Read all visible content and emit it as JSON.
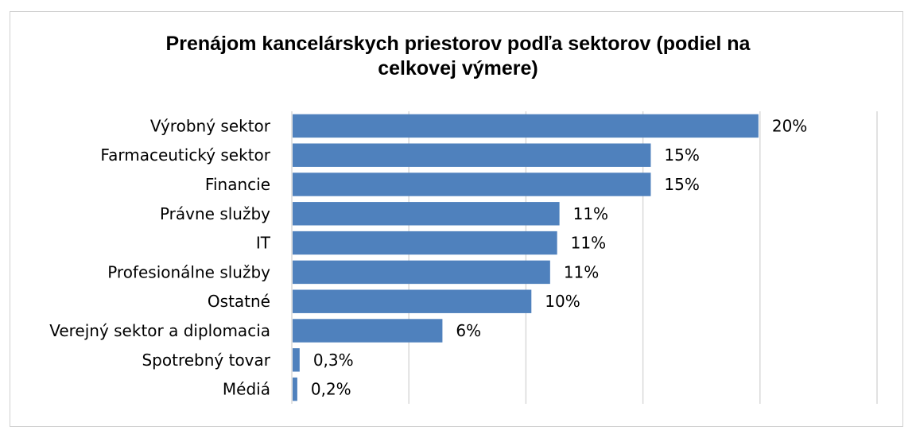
{
  "chart_data": {
    "type": "bar",
    "orientation": "horizontal",
    "title": "Prenájom kancelárskych priestorov podľa sektorov (podiel na\ncelkovej výmere)",
    "categories": [
      "Výrobný sektor",
      "Farmaceutický sektor",
      "Financie",
      "Právne služby",
      "IT",
      "Profesionálne služby",
      "Ostatné",
      "Verejný sektor a diplomacia",
      "Spotrebný tovar",
      "Médiá"
    ],
    "values": [
      19.9,
      15.3,
      15.3,
      11.4,
      11.3,
      11.0,
      10.2,
      6.4,
      0.3,
      0.2
    ],
    "data_labels": [
      "20%",
      "15%",
      "15%",
      "11%",
      "11%",
      "11%",
      "10%",
      "6%",
      "0,3%",
      "0,2%"
    ],
    "xlim": [
      0,
      25
    ],
    "grid": "vertical",
    "legend": "none",
    "colors": {
      "bar": "#4f81bd",
      "grid": "#d9d9d9"
    }
  }
}
